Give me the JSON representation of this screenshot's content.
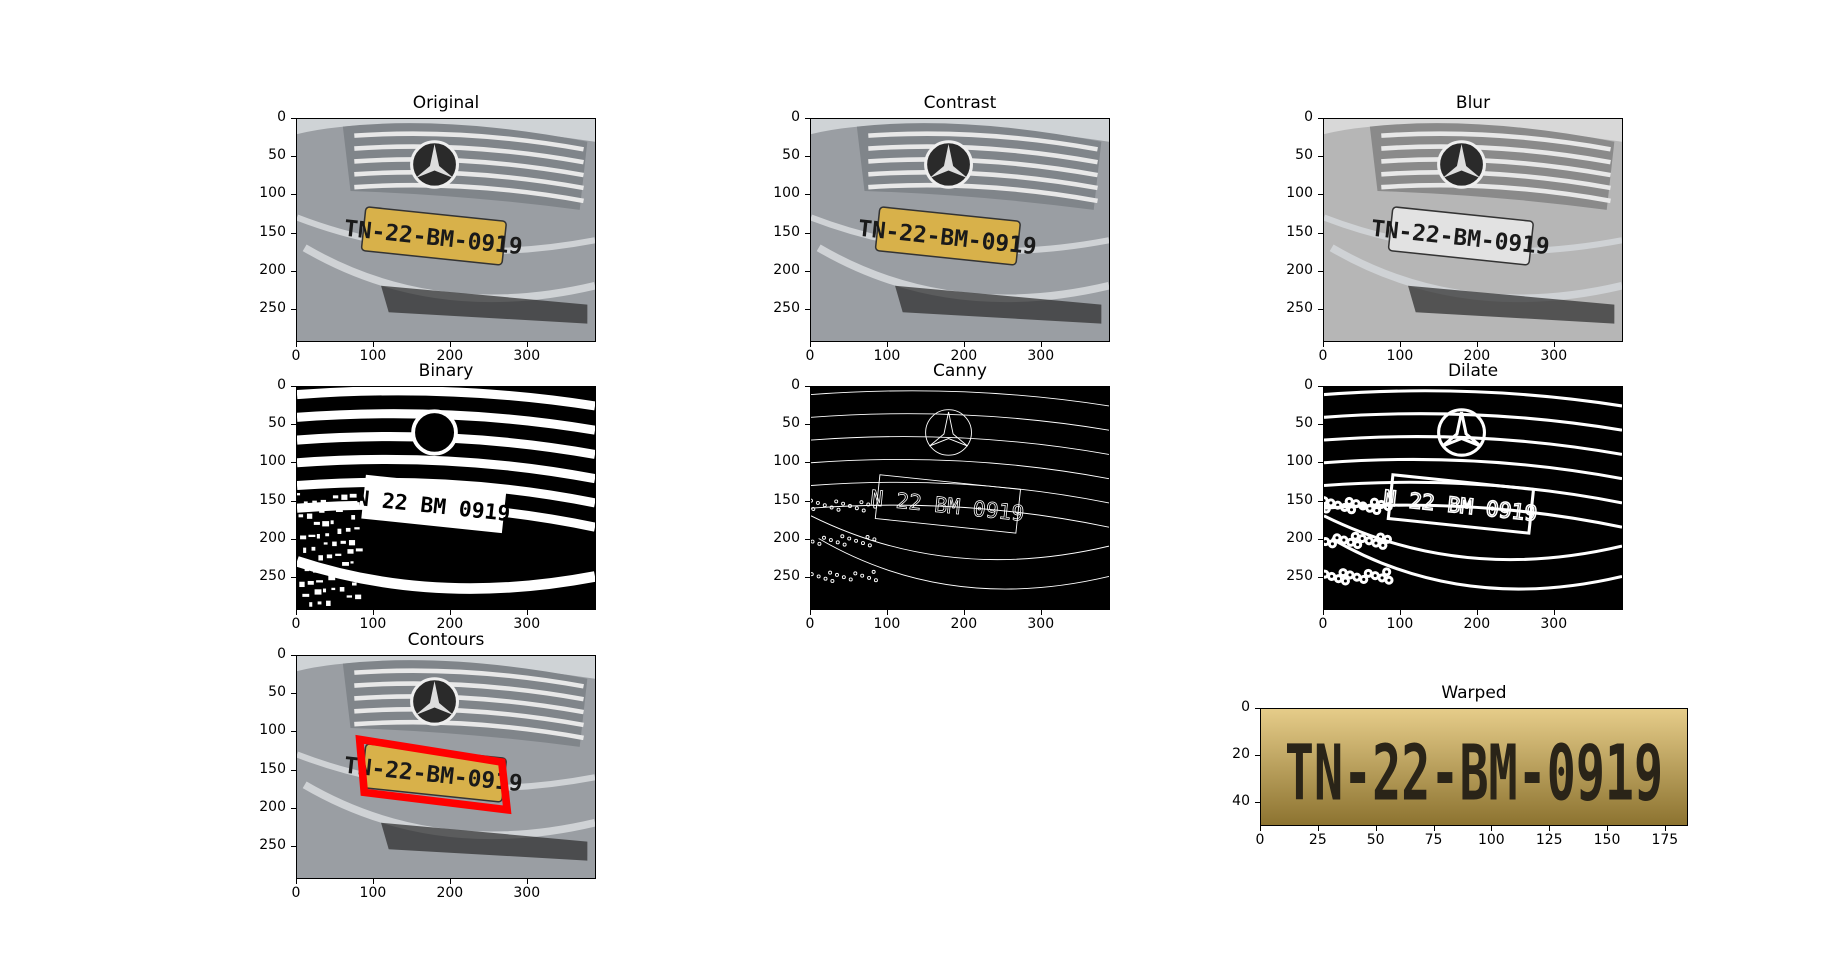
{
  "panels": [
    {
      "id": "original",
      "title": "Original",
      "style": "color",
      "yticks": [
        "0",
        "50",
        "100",
        "150",
        "200",
        "250"
      ],
      "xticks": [
        "0",
        "100",
        "200",
        "300"
      ]
    },
    {
      "id": "contrast",
      "title": "Contrast",
      "style": "color",
      "yticks": [
        "0",
        "50",
        "100",
        "150",
        "200",
        "250"
      ],
      "xticks": [
        "0",
        "100",
        "200",
        "300"
      ]
    },
    {
      "id": "blur",
      "title": "Blur",
      "style": "gray",
      "yticks": [
        "0",
        "50",
        "100",
        "150",
        "200",
        "250"
      ],
      "xticks": [
        "0",
        "100",
        "200",
        "300"
      ]
    },
    {
      "id": "binary",
      "title": "Binary",
      "style": "binary",
      "yticks": [
        "0",
        "50",
        "100",
        "150",
        "200",
        "250"
      ],
      "xticks": [
        "0",
        "100",
        "200",
        "300"
      ]
    },
    {
      "id": "canny",
      "title": "Canny",
      "style": "canny",
      "yticks": [
        "0",
        "50",
        "100",
        "150",
        "200",
        "250"
      ],
      "xticks": [
        "0",
        "100",
        "200",
        "300"
      ]
    },
    {
      "id": "dilate",
      "title": "Dilate",
      "style": "dilate",
      "yticks": [
        "0",
        "50",
        "100",
        "150",
        "200",
        "250"
      ],
      "xticks": [
        "0",
        "100",
        "200",
        "300"
      ]
    },
    {
      "id": "contours",
      "title": "Contours",
      "style": "contours",
      "yticks": [
        "0",
        "50",
        "100",
        "150",
        "200",
        "250"
      ],
      "xticks": [
        "0",
        "100",
        "200",
        "300"
      ]
    },
    {
      "id": "warped",
      "title": "Warped",
      "style": "warped",
      "yticks": [
        "0",
        "20",
        "40"
      ],
      "xticks": [
        "0",
        "25",
        "50",
        "75",
        "100",
        "125",
        "150",
        "175"
      ]
    }
  ],
  "plate_text": "TN-22-BM-0919",
  "plate_text_binary": "N 22 BM 0919",
  "colors": {
    "plate_yellow": "#d8b14a",
    "car_gray": "#9a9ea3",
    "contour_red": "#ff0000"
  }
}
